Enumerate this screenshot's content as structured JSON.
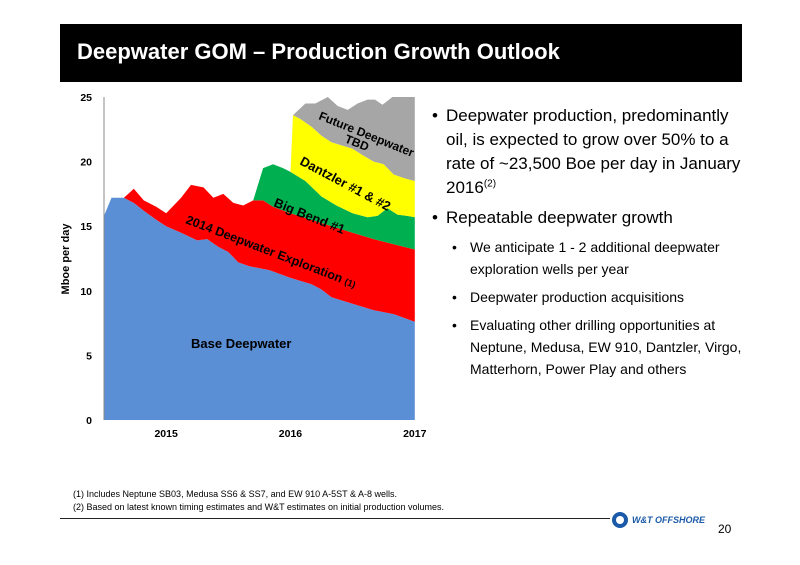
{
  "title": "Deepwater GOM – Production Growth Outlook",
  "chart_data": {
    "type": "area",
    "ylabel": "Mboe per day",
    "ylim": [
      0,
      25
    ],
    "yticks": [
      "0",
      "5",
      "10",
      "15",
      "20",
      "25"
    ],
    "xticks": [
      {
        "label": "2015",
        "t": 2015.0
      },
      {
        "label": "2016",
        "t": 2016.0
      },
      {
        "label": "2017",
        "t": 2017.0
      }
    ],
    "xlim": [
      2014.5,
      2017.05
    ],
    "series": [
      {
        "name": "Base Deepwater",
        "color": "#5a8fd6",
        "values": [
          [
            2014.5,
            15.8
          ],
          [
            2014.56,
            17.2
          ],
          [
            2014.66,
            17.2
          ],
          [
            2014.74,
            16.8
          ],
          [
            2014.82,
            16.2
          ],
          [
            2014.92,
            15.5
          ],
          [
            2015.0,
            15.0
          ],
          [
            2015.12,
            14.5
          ],
          [
            2015.25,
            13.9
          ],
          [
            2015.33,
            14.0
          ],
          [
            2015.42,
            13.4
          ],
          [
            2015.5,
            13.0
          ],
          [
            2015.58,
            12.2
          ],
          [
            2015.67,
            11.9
          ],
          [
            2015.83,
            11.6
          ],
          [
            2016.0,
            11.0
          ],
          [
            2016.17,
            10.5
          ],
          [
            2016.25,
            10.1
          ],
          [
            2016.33,
            9.5
          ],
          [
            2016.5,
            9.0
          ],
          [
            2016.67,
            8.5
          ],
          [
            2016.83,
            8.2
          ],
          [
            2017.0,
            7.6
          ]
        ]
      },
      {
        "name": "2014 Deepwater Exploration",
        "note": "(1)",
        "color": "#ff0000",
        "values": [
          [
            2014.66,
            17.2
          ],
          [
            2014.74,
            17.9
          ],
          [
            2014.82,
            17.0
          ],
          [
            2014.92,
            16.5
          ],
          [
            2015.0,
            16.0
          ],
          [
            2015.12,
            17.2
          ],
          [
            2015.2,
            18.2
          ],
          [
            2015.3,
            18.0
          ],
          [
            2015.38,
            17.2
          ],
          [
            2015.46,
            17.5
          ],
          [
            2015.54,
            16.8
          ],
          [
            2015.62,
            16.6
          ],
          [
            2015.7,
            17.0
          ],
          [
            2015.78,
            17.0
          ],
          [
            2015.86,
            16.5
          ],
          [
            2016.0,
            16.0
          ],
          [
            2016.17,
            15.5
          ],
          [
            2016.33,
            15.0
          ],
          [
            2016.5,
            14.5
          ],
          [
            2016.67,
            14.0
          ],
          [
            2016.83,
            13.6
          ],
          [
            2017.0,
            13.2
          ]
        ]
      },
      {
        "name": "Big Bend #1",
        "color": "#00b050",
        "values": [
          [
            2015.7,
            17.0
          ],
          [
            2015.78,
            19.5
          ],
          [
            2015.86,
            19.8
          ],
          [
            2015.94,
            19.5
          ],
          [
            2016.0,
            19.2
          ],
          [
            2016.12,
            18.5
          ],
          [
            2016.25,
            17.3
          ],
          [
            2016.37,
            16.6
          ],
          [
            2016.5,
            16.0
          ],
          [
            2016.62,
            15.7
          ],
          [
            2016.7,
            15.8
          ],
          [
            2016.78,
            16.4
          ],
          [
            2016.86,
            15.9
          ],
          [
            2016.94,
            15.8
          ],
          [
            2017.0,
            15.7
          ]
        ]
      },
      {
        "name": "Dantzler #1 & #2",
        "color": "#ffff00",
        "values": [
          [
            2016.0,
            19.2
          ],
          [
            2016.02,
            23.6
          ],
          [
            2016.08,
            23.3
          ],
          [
            2016.17,
            22.7
          ],
          [
            2016.25,
            22.0
          ],
          [
            2016.33,
            21.5
          ],
          [
            2016.5,
            21.0
          ],
          [
            2016.58,
            20.5
          ],
          [
            2016.67,
            20.0
          ],
          [
            2016.75,
            19.8
          ],
          [
            2016.83,
            19.0
          ],
          [
            2016.92,
            18.7
          ],
          [
            2017.0,
            18.5
          ]
        ]
      },
      {
        "name": "Future Deepwater TBD",
        "color": "#a6a6a6",
        "values": [
          [
            2016.02,
            23.6
          ],
          [
            2016.12,
            24.5
          ],
          [
            2016.2,
            24.5
          ],
          [
            2016.3,
            25.0
          ],
          [
            2016.38,
            24.3
          ],
          [
            2016.46,
            24.0
          ],
          [
            2016.54,
            24.5
          ],
          [
            2016.62,
            24.8
          ],
          [
            2016.68,
            24.8
          ],
          [
            2016.74,
            24.4
          ],
          [
            2016.82,
            25.0
          ],
          [
            2016.88,
            25.0
          ],
          [
            2017.0,
            25.0
          ]
        ]
      }
    ],
    "annotations": [
      "Base Deepwater",
      "2014 Deepwater Exploration",
      "(1)",
      "Big Bend #1",
      "Dantzler #1 & #2",
      "Future Deepwater",
      "TBD"
    ]
  },
  "bullets": [
    {
      "text": "Deepwater production, predominantly oil, is expected to grow over 50% to a rate of ~23,500 Boe per day in January 2016",
      "sup": "(2)"
    },
    {
      "text": "Repeatable deepwater growth",
      "sub": [
        "We anticipate 1 - 2 additional deepwater exploration wells per year",
        "Deepwater production acquisitions",
        "Evaluating other drilling opportunities at Neptune, Medusa, EW 910, Dantzler, Virgo, Matterhorn, Power Play and others"
      ]
    }
  ],
  "footnotes": [
    "(1) Includes Neptune SB03, Medusa SS6 & SS7, and EW 910 A-5ST & A-8 wells.",
    "(2) Based on latest known timing estimates and W&T estimates on initial production volumes."
  ],
  "logo": {
    "text": "W&T OFFSHORE",
    "colors": {
      "primary": "#1a5aa8"
    }
  },
  "page_number": "20"
}
